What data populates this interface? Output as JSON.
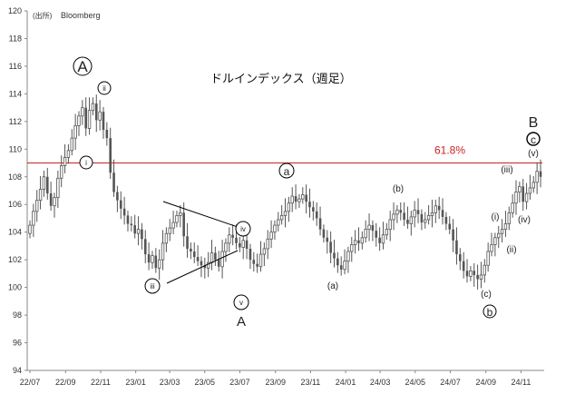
{
  "source_note": "(出所)",
  "source_name": "Bloomberg",
  "chart_data": {
    "type": "candlestick",
    "title": "ドルインデックス（週足）",
    "ylim": [
      94,
      120
    ],
    "yticks": [
      94,
      96,
      98,
      100,
      102,
      104,
      106,
      108,
      110,
      112,
      114,
      116,
      118,
      120
    ],
    "xlim": [
      "2022-07-01",
      "2024-12-05"
    ],
    "xticks": [
      {
        "date": "2022-07-01",
        "label": "22/07"
      },
      {
        "date": "2022-09-01",
        "label": "22/09"
      },
      {
        "date": "2022-11-01",
        "label": "22/11"
      },
      {
        "date": "2023-01-01",
        "label": "23/01"
      },
      {
        "date": "2023-03-01",
        "label": "23/03"
      },
      {
        "date": "2023-05-01",
        "label": "23/05"
      },
      {
        "date": "2023-07-01",
        "label": "23/07"
      },
      {
        "date": "2023-09-01",
        "label": "23/09"
      },
      {
        "date": "2023-11-01",
        "label": "23/11"
      },
      {
        "date": "2024-01-01",
        "label": "24/01"
      },
      {
        "date": "2024-03-01",
        "label": "24/03"
      },
      {
        "date": "2024-05-01",
        "label": "24/05"
      },
      {
        "date": "2024-07-01",
        "label": "24/07"
      },
      {
        "date": "2024-09-01",
        "label": "24/09"
      },
      {
        "date": "2024-11-01",
        "label": "24/11"
      }
    ],
    "grid": false,
    "candle_color": "#555555",
    "retracement": {
      "label": "61.8%",
      "value": 109.0,
      "color": "#cc2222"
    },
    "closes": [
      104.5,
      105.5,
      106.3,
      107.1,
      108.0,
      106.8,
      105.9,
      106.5,
      107.9,
      108.8,
      109.4,
      109.9,
      110.8,
      111.7,
      112.4,
      113.0,
      111.5,
      112.8,
      113.3,
      112.1,
      112.7,
      111.4,
      110.8,
      108.3,
      106.9,
      106.3,
      105.7,
      105.2,
      104.6,
      104.5,
      103.9,
      104.2,
      103.5,
      102.4,
      101.8,
      102.3,
      101.4,
      102.0,
      103.2,
      103.9,
      104.3,
      104.7,
      105.2,
      105.4,
      103.7,
      102.8,
      102.6,
      102.2,
      101.9,
      101.6,
      101.4,
      101.8,
      102.5,
      102.0,
      101.5,
      102.6,
      103.2,
      103.8,
      103.6,
      103.2,
      102.9,
      103.4,
      102.8,
      102.0,
      101.7,
      101.5,
      102.4,
      102.8,
      103.5,
      104.0,
      104.5,
      104.9,
      105.2,
      105.5,
      106.1,
      106.6,
      106.2,
      106.4,
      106.7,
      106.2,
      105.8,
      105.5,
      105.0,
      104.2,
      103.6,
      103.3,
      102.5,
      102.1,
      101.6,
      101.3,
      101.9,
      102.6,
      103.1,
      103.4,
      103.2,
      103.6,
      104.2,
      104.5,
      104.1,
      103.6,
      103.2,
      103.8,
      104.2,
      104.9,
      105.3,
      105.6,
      105.4,
      104.9,
      104.6,
      105.1,
      105.6,
      105.3,
      104.7,
      104.9,
      105.2,
      105.4,
      105.9,
      105.6,
      105.1,
      104.6,
      104.2,
      103.4,
      102.4,
      101.9,
      101.2,
      100.8,
      101.2,
      100.9,
      100.6,
      100.9,
      101.6,
      102.6,
      103.1,
      103.6,
      103.9,
      104.2,
      104.6,
      105.4,
      106.1,
      106.9,
      107.3,
      106.2,
      106.8,
      107.2,
      107.6,
      108.4,
      108.0
    ]
  },
  "annotations": {
    "A_big": "A",
    "i": "i",
    "ii": "ii",
    "iii": "iii",
    "iv": "iv",
    "v": "v",
    "A_small": "A",
    "a_circ": "a",
    "a_paren": "(a)",
    "b_paren": "(b)",
    "c_paren": "(c)",
    "b_circ": "b",
    "i_paren": "(i)",
    "ii_paren": "(ii)",
    "iii_paren": "(iii)",
    "iv_paren": "(iv)",
    "v_paren": "(v)",
    "B_big": "B",
    "c_circ": "c"
  }
}
